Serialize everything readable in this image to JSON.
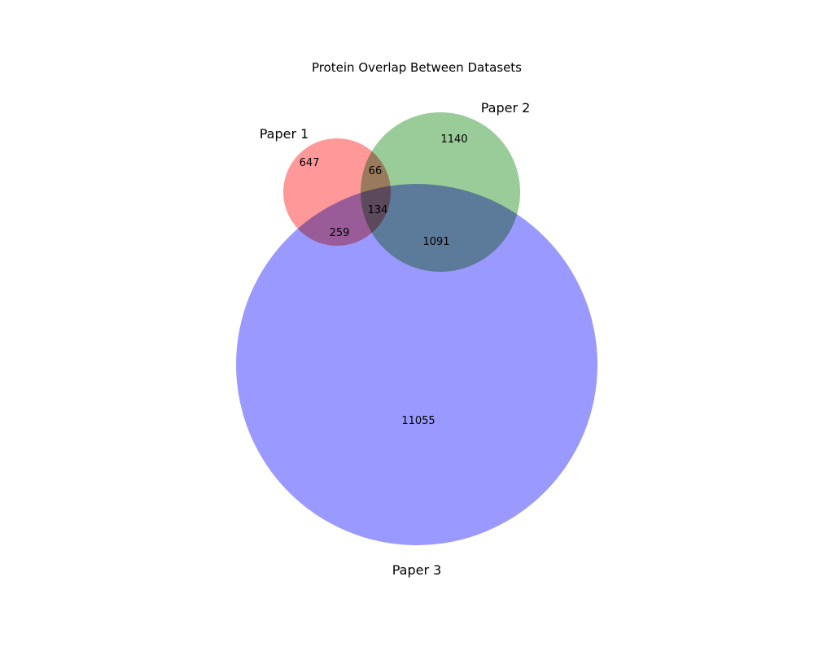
{
  "chart_data": {
    "type": "venn",
    "title": "Protein Overlap Between Datasets",
    "sets": [
      {
        "name": "Paper 1",
        "color": "#ff9999"
      },
      {
        "name": "Paper 2",
        "color": "#99cc99"
      },
      {
        "name": "Paper 3",
        "color": "#9999ff"
      }
    ],
    "regions": [
      {
        "sets": [
          "Paper 1"
        ],
        "value": 647
      },
      {
        "sets": [
          "Paper 2"
        ],
        "value": 1140
      },
      {
        "sets": [
          "Paper 3"
        ],
        "value": 11055
      },
      {
        "sets": [
          "Paper 1",
          "Paper 2"
        ],
        "value": 66
      },
      {
        "sets": [
          "Paper 1",
          "Paper 3"
        ],
        "value": 259
      },
      {
        "sets": [
          "Paper 2",
          "Paper 3"
        ],
        "value": 1091
      },
      {
        "sets": [
          "Paper 1",
          "Paper 2",
          "Paper 3"
        ],
        "value": 134
      }
    ]
  }
}
